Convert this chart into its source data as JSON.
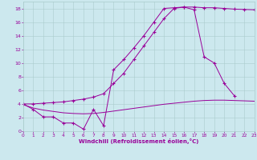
{
  "background_color": "#cce8ee",
  "grid_color": "#aacccc",
  "line_color": "#990099",
  "xlabel": "Windchill (Refroidissement éolien,°C)",
  "xlim": [
    0,
    23
  ],
  "ylim": [
    0,
    19
  ],
  "xticks": [
    0,
    1,
    2,
    3,
    4,
    5,
    6,
    7,
    8,
    9,
    10,
    11,
    12,
    13,
    14,
    15,
    16,
    17,
    18,
    19,
    20,
    21,
    22,
    23
  ],
  "yticks": [
    0,
    2,
    4,
    6,
    8,
    10,
    12,
    14,
    16,
    18
  ],
  "upper_x": [
    0,
    1,
    2,
    3,
    4,
    5,
    6,
    7,
    8,
    9,
    10,
    11,
    12,
    13,
    14,
    15,
    16,
    17,
    18,
    19,
    20,
    21,
    22,
    23
  ],
  "upper_y": [
    4.0,
    4.0,
    4.1,
    4.2,
    4.3,
    4.5,
    4.7,
    5.0,
    5.5,
    7.0,
    8.5,
    10.5,
    12.5,
    14.5,
    16.5,
    18.0,
    18.2,
    18.2,
    18.1,
    18.1,
    18.0,
    17.9,
    17.85,
    17.8
  ],
  "jagged_x": [
    0,
    1,
    2,
    3,
    4,
    5,
    6,
    7,
    8,
    9,
    10,
    11,
    12,
    13,
    14,
    15,
    16,
    17,
    18,
    19,
    20,
    21
  ],
  "jagged_y": [
    4.0,
    3.2,
    2.1,
    2.1,
    1.2,
    1.2,
    0.3,
    3.2,
    0.8,
    9.0,
    10.5,
    12.2,
    14.0,
    16.0,
    18.0,
    18.1,
    18.2,
    17.8,
    10.9,
    10.0,
    7.0,
    5.2
  ],
  "bottom_x": [
    0,
    1,
    2,
    3,
    4,
    5,
    6,
    7,
    8,
    9,
    10,
    11,
    12,
    13,
    14,
    15,
    16,
    17,
    18,
    19,
    20,
    21,
    22,
    23
  ],
  "bottom_y": [
    3.9,
    3.4,
    3.1,
    2.9,
    2.7,
    2.6,
    2.55,
    2.6,
    2.75,
    2.95,
    3.15,
    3.35,
    3.55,
    3.75,
    3.95,
    4.1,
    4.25,
    4.4,
    4.5,
    4.55,
    4.55,
    4.5,
    4.45,
    4.4
  ]
}
